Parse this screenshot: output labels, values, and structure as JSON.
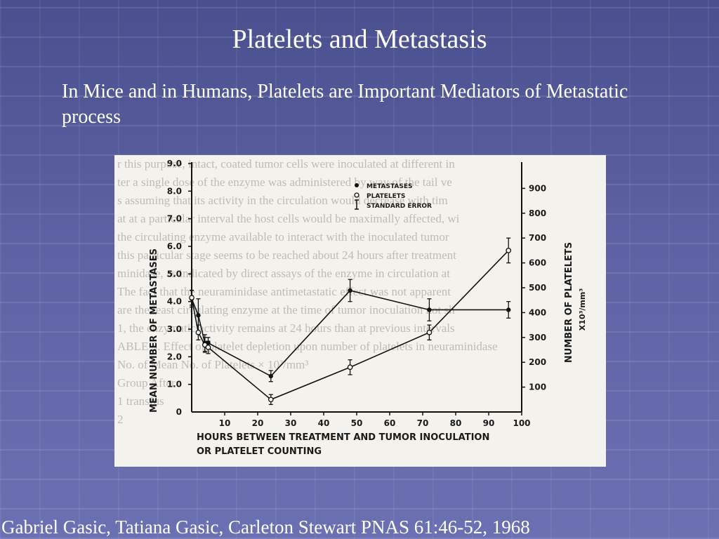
{
  "slide": {
    "title": "Platelets and Metastasis",
    "subtitle": "In Mice and in Humans, Platelets are Important Mediators of Metastatic process",
    "citation": "Gabriel Gasic, Tatiana Gasic, Carleton Stewart PNAS 61:46-52, 1968",
    "background_color": "#5c62a3"
  },
  "chart_data": {
    "type": "line",
    "xlabel": "HOURS BETWEEN TREATMENT AND TUMOR INOCULATION OR PLATELET COUNTING",
    "xlabel_line1": "HOURS BETWEEN TREATMENT AND TUMOR INOCULATION",
    "xlabel_line2": "OR PLATELET COUNTING",
    "ylabel_left": "MEAN NUMBER OF METASTASES",
    "ylabel_right": "NUMBER OF PLATELETS",
    "ylabel_right_units": "X10³/mm³",
    "xlim": [
      0,
      100
    ],
    "ylim_left": [
      0,
      9.0
    ],
    "ylim_right": [
      0,
      1000
    ],
    "x_ticks": [
      10,
      20,
      30,
      40,
      50,
      60,
      70,
      80,
      90,
      100
    ],
    "y_ticks_left": [
      "1.0",
      "2.0",
      "3.0",
      "4.0",
      "5.0",
      "6.0",
      "7.0",
      "8.0",
      "9.0"
    ],
    "y_tick_left_zero": "0",
    "y_ticks_right": [
      100,
      200,
      300,
      400,
      500,
      600,
      700,
      800,
      900
    ],
    "legend": [
      {
        "marker": "filled-dot",
        "label": "METASTASES"
      },
      {
        "marker": "open-dot",
        "label": "PLATELETS"
      },
      {
        "marker": "error-bar",
        "label": "STANDARD ERROR"
      }
    ],
    "legend_position": "top-center",
    "series": [
      {
        "name": "METASTASES",
        "axis": "left",
        "marker": "filled",
        "x": [
          0,
          2,
          4,
          5,
          24,
          48,
          72,
          96
        ],
        "y": [
          4.1,
          3.5,
          2.5,
          2.5,
          1.3,
          4.4,
          3.7,
          3.7
        ],
        "err": [
          0.3,
          0.6,
          0.3,
          0.2,
          0.2,
          0.4,
          0.4,
          0.3
        ]
      },
      {
        "name": "PLATELETS",
        "axis": "right",
        "marker": "open",
        "x": [
          0,
          2,
          4,
          5,
          24,
          48,
          72,
          96
        ],
        "y": [
          460,
          320,
          270,
          260,
          50,
          180,
          320,
          650
        ],
        "err": [
          30,
          30,
          30,
          25,
          20,
          30,
          30,
          50
        ]
      }
    ],
    "background_text": [
      "r this purpose, intact, coated tumor cells were inoculated at different in",
      "ter a single dose of the enzyme was administered by way of the tail ve",
      "s assuming that its activity in the circulation would decrease with tim",
      "at at a particular interval the host cells would be maximally affected, wi",
      "the circulating enzyme available to interact with the inoculated tumor",
      "this particular stage seems to be reached about 24 hours after treatment",
      "minidase, as indicated by direct assays of the enzyme in circulation at",
      "The fact that the neuraminidase antimetastatic effect was not apparent",
      "are the least circulating enzyme at the time of tumor inoculation not sh",
      "1, the enzymatic activity remains at 24 hours than at previous intervals",
      "",
      "ABLE 3. Effect of platelet depletion upon number of platelets in neuraminidase",
      "",
      "",
      "         No. of     Mean No. of Platelets × 10³/mm³",
      "Group                                              After",
      "  1                                                transfus",
      "  2                                                 "
    ]
  }
}
